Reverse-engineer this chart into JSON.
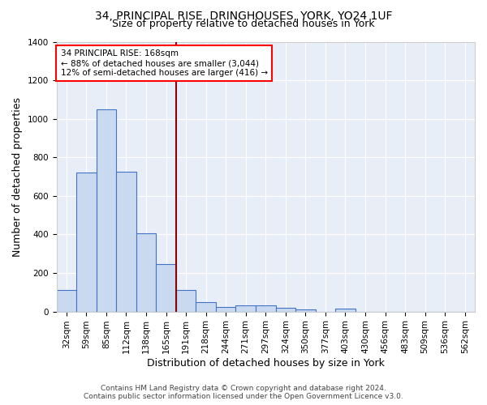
{
  "title": "34, PRINCIPAL RISE, DRINGHOUSES, YORK, YO24 1UF",
  "subtitle": "Size of property relative to detached houses in York",
  "xlabel": "Distribution of detached houses by size in York",
  "ylabel": "Number of detached properties",
  "categories": [
    "32sqm",
    "59sqm",
    "85sqm",
    "112sqm",
    "138sqm",
    "165sqm",
    "191sqm",
    "218sqm",
    "244sqm",
    "271sqm",
    "297sqm",
    "324sqm",
    "350sqm",
    "377sqm",
    "403sqm",
    "430sqm",
    "456sqm",
    "483sqm",
    "509sqm",
    "536sqm",
    "562sqm"
  ],
  "values": [
    110,
    720,
    1050,
    725,
    405,
    245,
    110,
    50,
    25,
    30,
    30,
    20,
    10,
    0,
    15,
    0,
    0,
    0,
    0,
    0,
    0
  ],
  "bar_color": "#c9d9f0",
  "bar_edge_color": "#4472c4",
  "vline_index": 5,
  "vline_color": "#8b0000",
  "annotation_line1": "34 PRINCIPAL RISE: 168sqm",
  "annotation_line2": "← 88% of detached houses are smaller (3,044)",
  "annotation_line3": "12% of semi-detached houses are larger (416) →",
  "annotation_box_color": "white",
  "annotation_box_edge": "red",
  "ylim": [
    0,
    1400
  ],
  "yticks": [
    0,
    200,
    400,
    600,
    800,
    1000,
    1200,
    1400
  ],
  "background_color": "#e8eef8",
  "footer": "Contains HM Land Registry data © Crown copyright and database right 2024.\nContains public sector information licensed under the Open Government Licence v3.0.",
  "title_fontsize": 10,
  "subtitle_fontsize": 9,
  "axis_label_fontsize": 9,
  "tick_fontsize": 7.5,
  "footer_fontsize": 6.5
}
